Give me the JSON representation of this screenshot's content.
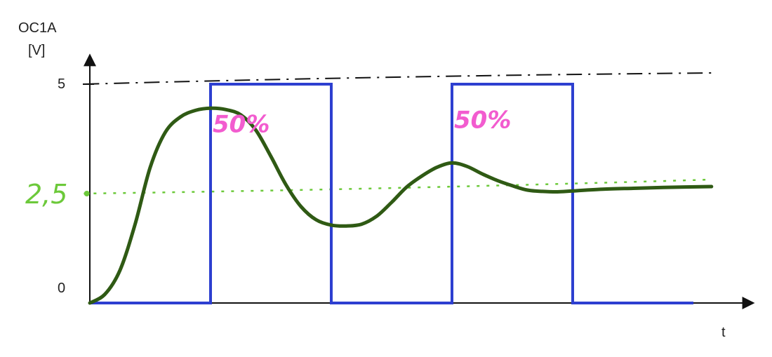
{
  "chart_data": {
    "type": "line",
    "ylabel_line1": "OC1A",
    "ylabel_line2": "[V]",
    "xlabel": "t",
    "yticks": [
      {
        "value": 0,
        "label": "0"
      },
      {
        "value": 5,
        "label": "5"
      }
    ],
    "ylim": [
      0,
      5.25
    ],
    "xlim": [
      0,
      10.3
    ],
    "grid": false,
    "legend": "none",
    "colors": {
      "pwm": "#2d3fd0",
      "response": "#2f5a14",
      "average": "#6cc93a",
      "max_line": "#111111",
      "annotation": "#f25ccf"
    },
    "average_label": "2,5",
    "average_value": 2.5,
    "max_value": 5,
    "duty_labels": [
      {
        "text": "50%",
        "x": 2.5,
        "y": 3.9
      },
      {
        "text": "50%",
        "x": 6.5,
        "y": 4.0
      }
    ],
    "series": [
      {
        "kind": "pwm",
        "x": [
          0,
          2.0,
          2.0,
          4.0,
          4.0,
          6.0,
          6.0,
          8.0,
          8.0,
          10.0
        ],
        "y": [
          0,
          0,
          5,
          5,
          0,
          0,
          5,
          5,
          0,
          0
        ]
      },
      {
        "kind": "response",
        "x": [
          0,
          0.25,
          0.5,
          0.75,
          1.0,
          1.25,
          1.5,
          1.75,
          2.0,
          2.25,
          2.5,
          2.75,
          3.0,
          3.25,
          3.5,
          3.75,
          4.0,
          4.25,
          4.5,
          4.75,
          5.0,
          5.25,
          5.5,
          5.75,
          6.0,
          6.25,
          6.5,
          6.75,
          7.0,
          7.25,
          7.5,
          7.75,
          8.0,
          8.5,
          9.0,
          9.5,
          10.3
        ],
        "y": [
          0,
          0.2,
          0.75,
          1.8,
          3.1,
          3.9,
          4.25,
          4.4,
          4.45,
          4.42,
          4.3,
          3.95,
          3.35,
          2.7,
          2.2,
          1.9,
          1.78,
          1.76,
          1.8,
          1.98,
          2.3,
          2.65,
          2.9,
          3.1,
          3.2,
          3.12,
          2.95,
          2.8,
          2.68,
          2.58,
          2.55,
          2.54,
          2.56,
          2.6,
          2.62,
          2.64,
          2.66
        ]
      }
    ]
  }
}
